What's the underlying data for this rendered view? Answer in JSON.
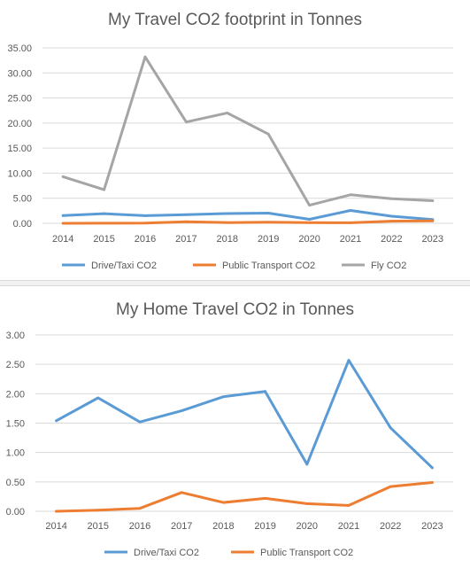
{
  "chart_data": [
    {
      "type": "line",
      "title": "My Travel CO2 footprint in Tonnes",
      "categories": [
        "2014",
        "2015",
        "2016",
        "2017",
        "2018",
        "2019",
        "2020",
        "2021",
        "2022",
        "2023"
      ],
      "ylim": [
        0,
        35
      ],
      "yticks": [
        "0.00",
        "5.00",
        "10.00",
        "15.00",
        "20.00",
        "25.00",
        "30.00",
        "35.00"
      ],
      "grid": true,
      "legend": "bottom",
      "series": [
        {
          "name": "Drive/Taxi CO2",
          "color": "#5b9bd5",
          "values": [
            1.54,
            1.93,
            1.52,
            1.71,
            1.95,
            2.04,
            0.8,
            2.57,
            1.42,
            0.74
          ]
        },
        {
          "name": "Public Transport  CO2",
          "color": "#ed7d31",
          "values": [
            0.0,
            0.02,
            0.05,
            0.32,
            0.15,
            0.22,
            0.13,
            0.1,
            0.42,
            0.49
          ]
        },
        {
          "name": "Fly CO2",
          "color": "#a5a5a5",
          "values": [
            9.3,
            6.7,
            33.2,
            20.2,
            22.0,
            17.8,
            3.6,
            5.7,
            4.9,
            4.5
          ]
        }
      ]
    },
    {
      "type": "line",
      "title": "My Home Travel CO2 in Tonnes",
      "categories": [
        "2014",
        "2015",
        "2016",
        "2017",
        "2018",
        "2019",
        "2020",
        "2021",
        "2022",
        "2023"
      ],
      "ylim": [
        0,
        3
      ],
      "yticks": [
        "0.00",
        "0.50",
        "1.00",
        "1.50",
        "2.00",
        "2.50",
        "3.00"
      ],
      "grid": true,
      "legend": "bottom",
      "series": [
        {
          "name": "Drive/Taxi CO2",
          "color": "#5b9bd5",
          "values": [
            1.54,
            1.93,
            1.52,
            1.71,
            1.95,
            2.04,
            0.8,
            2.57,
            1.42,
            0.74
          ]
        },
        {
          "name": "Public Transport  CO2",
          "color": "#ed7d31",
          "values": [
            0.0,
            0.02,
            0.05,
            0.32,
            0.15,
            0.22,
            0.13,
            0.1,
            0.42,
            0.49
          ]
        }
      ]
    }
  ]
}
